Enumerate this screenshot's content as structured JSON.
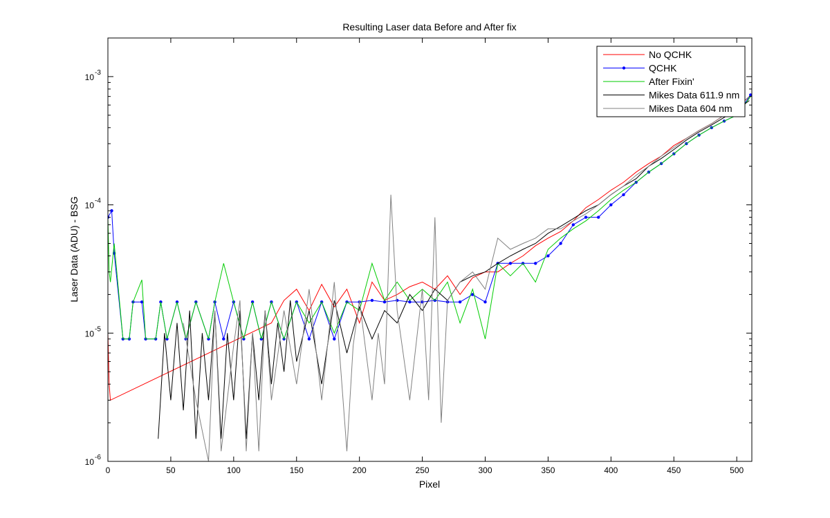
{
  "chart_data": {
    "type": "line",
    "title": "Resulting Laser data Before and After fix",
    "xlabel": "Pixel",
    "ylabel": "Laser Data (ADU) - BSG",
    "xlim": [
      0,
      512
    ],
    "ylim": [
      1e-06,
      0.002
    ],
    "yscale": "log",
    "grid": false,
    "legend_position": "top-right",
    "x_ticks": [
      0,
      50,
      100,
      150,
      200,
      250,
      300,
      350,
      400,
      450,
      500
    ],
    "x_tick_labels": [
      "0",
      "50",
      "100",
      "150",
      "200",
      "250",
      "300",
      "350",
      "400",
      "450",
      "500"
    ],
    "y_ticks": [
      1e-06,
      1e-05,
      0.0001,
      0.001
    ],
    "y_tick_labels": [
      {
        "base": "10",
        "exp": "-6"
      },
      {
        "base": "10",
        "exp": "-5"
      },
      {
        "base": "10",
        "exp": "-4"
      },
      {
        "base": "10",
        "exp": "-3"
      }
    ],
    "series": [
      {
        "name": "No QCHK",
        "color": "#ff0000",
        "marker": "none",
        "x": [
          0,
          1,
          2,
          130,
          140,
          150,
          160,
          170,
          180,
          190,
          200,
          210,
          220,
          230,
          240,
          250,
          260,
          270,
          280,
          290,
          300,
          310,
          320,
          330,
          340,
          350,
          360,
          370,
          380,
          390,
          400,
          410,
          420,
          430,
          440,
          450,
          460,
          470,
          480,
          490,
          500,
          510
        ],
        "y": [
          1e-05,
          4e-06,
          3e-06,
          1.2e-05,
          1.8e-05,
          2.2e-05,
          1.5e-05,
          2.4e-05,
          1.6e-05,
          2.2e-05,
          1.2e-05,
          2.5e-05,
          1.8e-05,
          2e-05,
          2.3e-05,
          2.5e-05,
          2.2e-05,
          2.8e-05,
          2e-05,
          2.7e-05,
          3e-05,
          3e-05,
          3.5e-05,
          4e-05,
          4.8e-05,
          5.5e-05,
          6.2e-05,
          7.5e-05,
          9.5e-05,
          0.00011,
          0.00013,
          0.00015,
          0.00018,
          0.00021,
          0.00024,
          0.00029,
          0.00033,
          0.00038,
          0.00043,
          0.0005,
          0.00057,
          0.0007
        ]
      },
      {
        "name": "QCHK",
        "color": "#0000ff",
        "marker": "dot",
        "x": [
          0,
          3,
          5,
          12,
          17,
          20,
          27,
          30,
          38,
          42,
          47,
          55,
          62,
          70,
          80,
          85,
          92,
          100,
          108,
          115,
          122,
          130,
          140,
          150,
          160,
          170,
          180,
          190,
          200,
          210,
          220,
          230,
          240,
          250,
          260,
          270,
          280,
          290,
          300,
          310,
          320,
          330,
          340,
          350,
          360,
          370,
          380,
          390,
          400,
          410,
          420,
          430,
          440,
          450,
          460,
          470,
          480,
          490,
          500,
          511
        ],
        "y": [
          8e-05,
          9e-05,
          4.2e-05,
          9e-06,
          9e-06,
          1.75e-05,
          1.75e-05,
          9e-06,
          9e-06,
          1.75e-05,
          9e-06,
          1.75e-05,
          9e-06,
          1.75e-05,
          9e-06,
          1.75e-05,
          9e-06,
          1.75e-05,
          9e-06,
          1.75e-05,
          9e-06,
          1.75e-05,
          9e-06,
          1.75e-05,
          9e-06,
          1.75e-05,
          9e-06,
          1.75e-05,
          1.75e-05,
          1.8e-05,
          1.75e-05,
          1.8e-05,
          1.75e-05,
          1.75e-05,
          1.8e-05,
          1.75e-05,
          1.75e-05,
          2e-05,
          1.75e-05,
          3.5e-05,
          3.5e-05,
          3.5e-05,
          3.5e-05,
          4e-05,
          5e-05,
          7e-05,
          8e-05,
          8e-05,
          0.0001,
          0.00012,
          0.00015,
          0.00018,
          0.00021,
          0.00025,
          0.0003,
          0.00035,
          0.0004,
          0.00045,
          0.0005,
          0.00072
        ]
      },
      {
        "name": "After Fixin'",
        "color": "#00cc00",
        "marker": "none",
        "x": [
          0,
          1,
          2,
          5,
          12,
          17,
          20,
          27,
          30,
          38,
          42,
          47,
          55,
          62,
          70,
          80,
          85,
          92,
          100,
          108,
          115,
          122,
          130,
          140,
          150,
          160,
          170,
          180,
          190,
          200,
          210,
          220,
          230,
          240,
          250,
          260,
          270,
          280,
          290,
          300,
          310,
          320,
          330,
          340,
          350,
          360,
          370,
          380,
          390,
          400,
          410,
          420,
          430,
          440,
          450,
          460,
          470,
          480,
          490,
          500,
          511
        ],
        "y": [
          8e-05,
          3e-05,
          2.5e-05,
          5e-05,
          9e-06,
          9e-06,
          1.75e-05,
          2.6e-05,
          9e-06,
          9e-06,
          1.75e-05,
          9e-06,
          1.75e-05,
          9e-06,
          1.75e-05,
          9e-06,
          1.75e-05,
          3.5e-05,
          1.75e-05,
          9e-06,
          1.75e-05,
          9e-06,
          1.75e-05,
          9e-06,
          1.75e-05,
          1.2e-05,
          1.75e-05,
          1e-05,
          1.75e-05,
          1.5e-05,
          3.5e-05,
          1.8e-05,
          2.5e-05,
          1.8e-05,
          2.2e-05,
          1.8e-05,
          2.5e-05,
          1.2e-05,
          2.2e-05,
          9e-06,
          3.5e-05,
          2.8e-05,
          3.5e-05,
          2.5e-05,
          4.5e-05,
          5.5e-05,
          6.5e-05,
          7.5e-05,
          9e-05,
          0.00011,
          0.00013,
          0.00015,
          0.00018,
          0.00021,
          0.00025,
          0.0003,
          0.00035,
          0.0004,
          0.00045,
          0.0005,
          0.0007
        ]
      },
      {
        "name": "Mikes Data 611.9 nm",
        "color": "#000000",
        "marker": "none",
        "x": [
          40,
          45,
          50,
          55,
          60,
          65,
          70,
          75,
          80,
          85,
          90,
          95,
          100,
          105,
          110,
          115,
          120,
          125,
          130,
          135,
          140,
          145,
          150,
          160,
          170,
          180,
          190,
          200,
          210,
          220,
          230,
          240,
          250,
          260,
          270,
          280,
          290,
          300,
          310,
          320,
          330,
          340,
          350,
          360,
          370,
          380,
          390,
          400,
          410,
          420,
          430,
          440,
          450,
          460,
          470,
          480,
          490,
          500,
          510
        ],
        "y": [
          1.5e-06,
          1e-05,
          3e-06,
          1.2e-05,
          2.5e-06,
          1.5e-05,
          1.5e-06,
          1e-05,
          3e-06,
          1.5e-05,
          1.5e-06,
          1e-05,
          3e-06,
          1.5e-05,
          1.5e-06,
          1e-05,
          3e-06,
          1.5e-05,
          4e-06,
          1.2e-05,
          5e-06,
          1.8e-05,
          6e-06,
          1.5e-05,
          4e-06,
          1.8e-05,
          7e-06,
          1.6e-05,
          9e-06,
          1.5e-05,
          1.2e-05,
          2e-05,
          1.5e-05,
          2.2e-05,
          1.8e-05,
          2.5e-05,
          2.8e-05,
          3e-05,
          3.5e-05,
          4e-05,
          4.5e-05,
          5e-05,
          6e-05,
          6.8e-05,
          7.8e-05,
          9e-05,
          0.0001,
          0.00012,
          0.00014,
          0.00016,
          0.0002,
          0.00023,
          0.00027,
          0.00032,
          0.00037,
          0.00042,
          0.00048,
          0.00055,
          0.00065
        ]
      },
      {
        "name": "Mikes Data 604 nm",
        "color": "#808080",
        "marker": "none",
        "x": [
          60,
          70,
          80,
          85,
          90,
          100,
          105,
          110,
          115,
          120,
          125,
          130,
          140,
          150,
          160,
          170,
          180,
          190,
          195,
          200,
          210,
          215,
          220,
          225,
          230,
          240,
          250,
          255,
          260,
          265,
          270,
          280,
          290,
          300,
          310,
          320,
          330,
          340,
          350,
          360,
          370,
          380,
          390,
          400,
          410,
          420,
          430,
          440,
          450,
          460,
          470,
          480,
          490,
          500,
          510
        ],
        "y": [
          1.2e-05,
          3e-06,
          1e-06,
          1.5e-05,
          1.2e-06,
          8e-06,
          1.8e-05,
          1.2e-06,
          1e-05,
          1.2e-06,
          1.5e-05,
          3e-06,
          1.5e-05,
          4e-06,
          2.2e-05,
          3e-06,
          2.5e-05,
          1.2e-06,
          8e-06,
          1.8e-05,
          3e-06,
          1e-05,
          4e-06,
          0.00012,
          1.5e-05,
          3e-06,
          2.2e-05,
          3e-06,
          8e-05,
          2e-06,
          1.8e-05,
          2.5e-05,
          3e-05,
          2.2e-05,
          5.5e-05,
          4.5e-05,
          5e-05,
          5.5e-05,
          6.5e-05,
          6.5e-05,
          7.5e-05,
          8.5e-05,
          0.0001,
          0.00012,
          0.00014,
          0.00017,
          0.0002,
          0.00024,
          0.00028,
          0.00033,
          0.00038,
          0.00043,
          0.0005,
          0.00058,
          0.0007
        ]
      }
    ]
  }
}
